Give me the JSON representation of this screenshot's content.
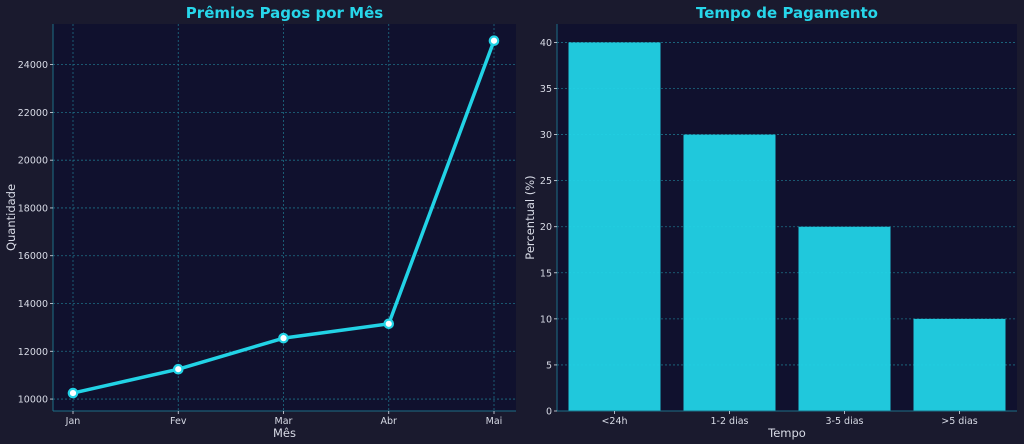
{
  "colors": {
    "figure_background": "#1a1a2e",
    "axes_background": "#10112e",
    "accent": "#22d3e6",
    "title": "#27d6ea",
    "grid": "#1d6f86",
    "text": "#d8dbe6"
  },
  "chart_data": [
    {
      "type": "line",
      "title": "Prêmios Pagos por Mês",
      "xlabel": "Mês",
      "ylabel": "Quantidade",
      "categories": [
        "Jan",
        "Fev",
        "Mar",
        "Abr",
        "Mai"
      ],
      "series": [
        {
          "values": [
            10250,
            11250,
            12550,
            13150,
            25000
          ]
        }
      ],
      "ylim": [
        9500,
        25700
      ],
      "yticks": [
        10000,
        12000,
        14000,
        16000,
        18000,
        20000,
        22000,
        24000
      ],
      "grid": true,
      "marker": "circle"
    },
    {
      "type": "bar",
      "title": "Tempo de Pagamento",
      "xlabel": "Tempo",
      "ylabel": "Percentual (%)",
      "categories": [
        "<24h",
        "1-2 dias",
        "3-5 dias",
        ">5 dias"
      ],
      "values": [
        40,
        30,
        20,
        10
      ],
      "ylim": [
        0,
        42
      ],
      "yticks": [
        0,
        5,
        10,
        15,
        20,
        25,
        30,
        35,
        40
      ],
      "grid": true
    }
  ]
}
